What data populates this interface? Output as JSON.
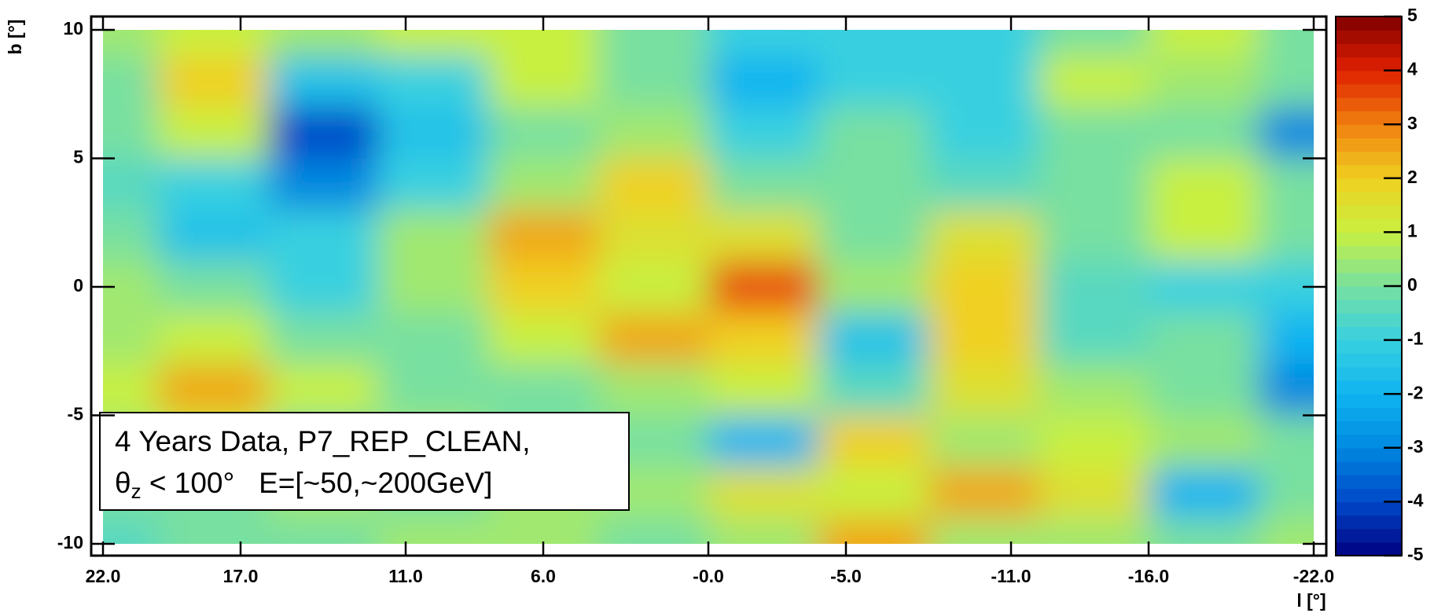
{
  "chart_data": {
    "type": "heatmap",
    "x": [
      22,
      18,
      14,
      10,
      6,
      2,
      -2,
      -6,
      -10,
      -14,
      -18,
      -22
    ],
    "y": [
      10,
      8,
      6,
      4,
      2,
      0,
      -2,
      -4,
      -6,
      -8,
      -10
    ],
    "values": [
      [
        0.5,
        1,
        0.5,
        1,
        1,
        0,
        -1,
        -1,
        -1,
        0,
        1,
        0
      ],
      [
        0,
        2,
        -1.5,
        -1,
        1,
        0,
        -2,
        -1,
        -1,
        1,
        0.5,
        0
      ],
      [
        0,
        1,
        -4,
        -1.5,
        0,
        0.5,
        -1,
        0,
        -1,
        0,
        0,
        -3
      ],
      [
        -0.5,
        -1,
        -3,
        -1,
        0.5,
        2,
        0,
        0,
        -0.5,
        0,
        1,
        0
      ],
      [
        0,
        -1.5,
        -1,
        0.5,
        2.5,
        1.5,
        1.5,
        0,
        1.5,
        0,
        1,
        0
      ],
      [
        0.5,
        0,
        -1,
        0.5,
        2,
        1,
        3.5,
        0.5,
        2,
        -0.5,
        -1,
        -1
      ],
      [
        0.5,
        1,
        0,
        0,
        1,
        2.5,
        2,
        -1.5,
        2,
        -0.5,
        0,
        -2
      ],
      [
        1,
        2.5,
        1,
        0,
        0,
        0.5,
        1,
        -0.5,
        1.5,
        0.5,
        0,
        -3
      ],
      [
        0.5,
        1,
        0,
        0.5,
        0,
        0,
        -2,
        2,
        0.5,
        1,
        0.5,
        0
      ],
      [
        0,
        0,
        0.5,
        0,
        0.5,
        0.5,
        1.5,
        1,
        2.5,
        1.5,
        -2,
        0
      ],
      [
        -0.5,
        0,
        0,
        0.5,
        0.5,
        0,
        0.5,
        2.5,
        0.5,
        0.5,
        0,
        0.5
      ]
    ],
    "xlim": [
      22,
      -22
    ],
    "ylim": [
      -10,
      10
    ],
    "zlim": [
      -5,
      5
    ],
    "xticks": [
      {
        "value": 22,
        "label": "22.0"
      },
      {
        "value": 17,
        "label": "17.0"
      },
      {
        "value": 11,
        "label": "11.0"
      },
      {
        "value": 6,
        "label": "6.0"
      },
      {
        "value": 0,
        "label": "-0.0"
      },
      {
        "value": -5,
        "label": "-5.0"
      },
      {
        "value": -11,
        "label": "-11.0"
      },
      {
        "value": -16,
        "label": "-16.0"
      },
      {
        "value": -22,
        "label": "-22.0"
      }
    ],
    "yticks": [
      10,
      5,
      0,
      -5,
      -10
    ],
    "zticks": [
      5,
      4,
      3,
      2,
      1,
      0,
      -1,
      -2,
      -3,
      -4,
      -5
    ],
    "colors": [
      "#000080",
      "#0048c8",
      "#0088e0",
      "#10b4f0",
      "#38d0e0",
      "#78e0a0",
      "#c8f040",
      "#f0d020",
      "#f08010",
      "#e02000",
      "#800000"
    ],
    "xlabel": "l [°]",
    "ylabel": "b [°]",
    "annotation": {
      "line1": "4 Years Data, P7_REP_CLEAN,",
      "theta": "θ",
      "sub": "z",
      "rest": " < 100°   E=[~50,~200GeV]"
    }
  }
}
